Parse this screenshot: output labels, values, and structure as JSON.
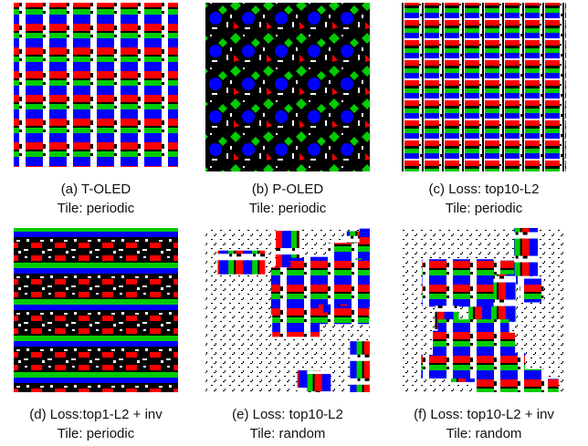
{
  "panels": [
    {
      "caption": "(a) T-OLED",
      "tile": "Tile: periodic"
    },
    {
      "caption": "(b) P-OLED",
      "tile": "Tile: periodic"
    },
    {
      "caption": "(c) Loss: top10-L2",
      "tile": "Tile: periodic"
    },
    {
      "caption": "(d) Loss:top1-L2 + inv",
      "tile": "Tile: periodic"
    },
    {
      "caption": "(e) Loss: top10-L2",
      "tile": "Tile: random"
    },
    {
      "caption": "(f) Loss: top10-L2 + inv",
      "tile": "Tile: random"
    }
  ]
}
